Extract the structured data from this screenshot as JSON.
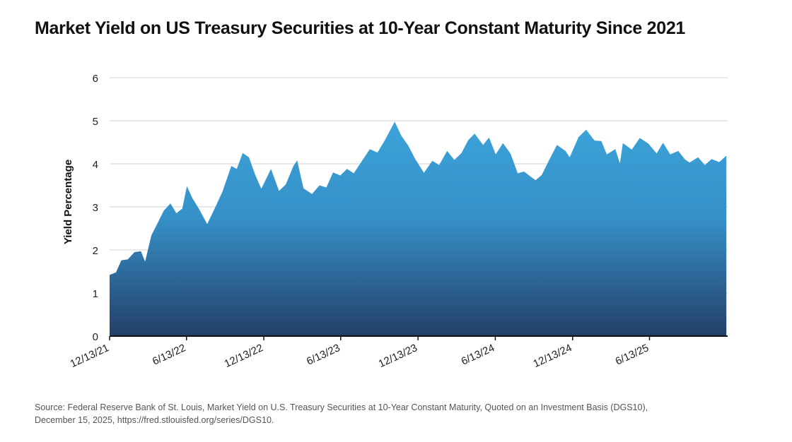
{
  "title": "Market Yield on US Treasury Securities at 10-Year Constant Maturity Since 2021",
  "source": {
    "line1": "Source: Federal Reserve Bank of St. Louis, Market Yield on U.S. Treasury Securities at 10-Year Constant Maturity, Quoted on an Investment Basis (DGS10),",
    "line2": "December 15, 2025, https://fred.stlouisfed.org/series/DGS10."
  },
  "chart_data": {
    "type": "area",
    "title": "Market Yield on US Treasury Securities at 10-Year Constant Maturity Since 2021",
    "xlabel": "",
    "ylabel": "Yield Percentage",
    "ylim": [
      0,
      6
    ],
    "yticks": [
      "0",
      "1",
      "2",
      "3",
      "4",
      "5",
      "6"
    ],
    "xlim": [
      "2021-12-13",
      "2025-12-15"
    ],
    "xticks": [
      {
        "date": "2021-12-13",
        "label": "12/13/21"
      },
      {
        "date": "2022-06-13",
        "label": "6/13/22"
      },
      {
        "date": "2022-12-13",
        "label": "12/13/22"
      },
      {
        "date": "2023-06-13",
        "label": "6/13/23"
      },
      {
        "date": "2023-12-13",
        "label": "12/13/23"
      },
      {
        "date": "2024-06-13",
        "label": "6/13/24"
      },
      {
        "date": "2024-12-13",
        "label": "12/13/24"
      },
      {
        "date": "2025-06-13",
        "label": "6/13/25"
      }
    ],
    "grid": "horizontal",
    "colors": {
      "fill_top": "#3ba3d8",
      "fill_bottom": "#233f68",
      "grid": "#d9d9d9",
      "axis": "#111111"
    },
    "x": [
      "2021-12-13",
      "2021-12-28",
      "2022-01-10",
      "2022-01-25",
      "2022-02-10",
      "2022-02-25",
      "2022-03-07",
      "2022-03-22",
      "2022-04-05",
      "2022-04-20",
      "2022-05-06",
      "2022-05-20",
      "2022-06-03",
      "2022-06-14",
      "2022-06-27",
      "2022-07-12",
      "2022-08-01",
      "2022-08-22",
      "2022-09-06",
      "2022-09-27",
      "2022-10-10",
      "2022-10-24",
      "2022-11-08",
      "2022-11-22",
      "2022-12-07",
      "2022-12-30",
      "2023-01-18",
      "2023-02-03",
      "2023-02-21",
      "2023-03-02",
      "2023-03-17",
      "2023-04-06",
      "2023-04-24",
      "2023-05-10",
      "2023-05-26",
      "2023-06-12",
      "2023-06-28",
      "2023-07-14",
      "2023-08-01",
      "2023-08-21",
      "2023-09-08",
      "2023-09-28",
      "2023-10-19",
      "2023-11-03",
      "2023-11-20",
      "2023-12-06",
      "2023-12-27",
      "2024-01-16",
      "2024-02-01",
      "2024-02-20",
      "2024-03-08",
      "2024-03-25",
      "2024-04-10",
      "2024-04-25",
      "2024-05-15",
      "2024-05-29",
      "2024-06-14",
      "2024-07-01",
      "2024-07-19",
      "2024-08-05",
      "2024-08-20",
      "2024-09-16",
      "2024-10-01",
      "2024-10-18",
      "2024-11-06",
      "2024-11-26",
      "2024-12-06",
      "2024-12-27",
      "2025-01-14",
      "2025-02-03",
      "2025-02-19",
      "2025-03-04",
      "2025-03-24",
      "2025-04-04",
      "2025-04-11",
      "2025-05-02",
      "2025-05-21",
      "2025-06-10",
      "2025-06-30",
      "2025-07-15",
      "2025-08-01",
      "2025-08-20",
      "2025-09-05",
      "2025-09-16",
      "2025-10-06",
      "2025-10-22",
      "2025-11-07",
      "2025-11-25",
      "2025-12-12"
    ],
    "values": [
      1.42,
      1.48,
      1.76,
      1.78,
      1.95,
      1.97,
      1.73,
      2.34,
      2.61,
      2.91,
      3.08,
      2.85,
      2.96,
      3.48,
      3.2,
      2.96,
      2.6,
      3.03,
      3.35,
      3.95,
      3.88,
      4.25,
      4.15,
      3.76,
      3.42,
      3.88,
      3.37,
      3.52,
      3.95,
      4.08,
      3.43,
      3.3,
      3.5,
      3.45,
      3.8,
      3.73,
      3.88,
      3.78,
      4.05,
      4.34,
      4.26,
      4.59,
      4.98,
      4.66,
      4.42,
      4.12,
      3.79,
      4.07,
      3.97,
      4.3,
      4.09,
      4.25,
      4.55,
      4.7,
      4.44,
      4.61,
      4.22,
      4.48,
      4.24,
      3.78,
      3.82,
      3.62,
      3.74,
      4.08,
      4.44,
      4.3,
      4.15,
      4.62,
      4.79,
      4.54,
      4.53,
      4.22,
      4.34,
      4.01,
      4.48,
      4.33,
      4.6,
      4.47,
      4.24,
      4.49,
      4.22,
      4.3,
      4.1,
      4.03,
      4.15,
      3.97,
      4.11,
      4.04,
      4.19
    ]
  }
}
